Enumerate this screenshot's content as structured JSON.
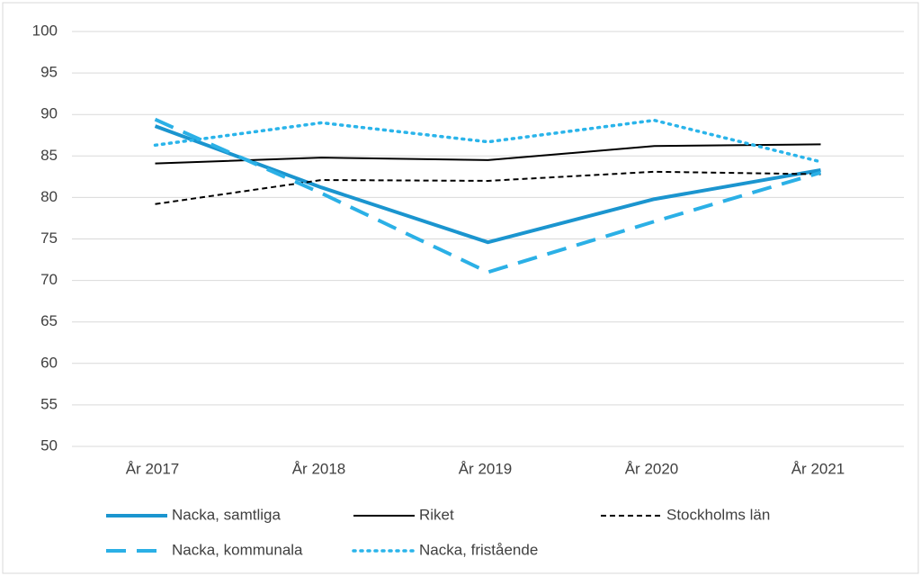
{
  "chart_data": {
    "type": "line",
    "categories": [
      "År 2017",
      "År 2018",
      "År 2019",
      "År 2020",
      "År 2021"
    ],
    "series": [
      {
        "name": "Nacka, samtliga",
        "color": "#1b95cf",
        "style": "solid",
        "values": [
          88.6,
          81.2,
          74.6,
          79.8,
          83.3
        ]
      },
      {
        "name": "Riket",
        "color": "#000000",
        "style": "solid",
        "values": [
          84.1,
          84.8,
          84.5,
          86.2,
          86.4
        ]
      },
      {
        "name": "Stockholms län",
        "color": "#000000",
        "style": "dashed",
        "values": [
          79.2,
          82.1,
          82.0,
          83.1,
          82.8
        ]
      },
      {
        "name": "Nacka, kommunala",
        "color": "#2bb0e6",
        "style": "dashed",
        "values": [
          89.4,
          80.5,
          71.0,
          77.1,
          83.0
        ]
      },
      {
        "name": "Nacka, fristående",
        "color": "#2ab4ea",
        "style": "dotted",
        "values": [
          86.3,
          89.0,
          86.7,
          89.3,
          84.3
        ]
      }
    ],
    "ylim": [
      50,
      100
    ],
    "yticks": [
      50,
      55,
      60,
      65,
      70,
      75,
      80,
      85,
      90,
      95,
      100
    ],
    "grid": true,
    "legend": "bottom"
  }
}
